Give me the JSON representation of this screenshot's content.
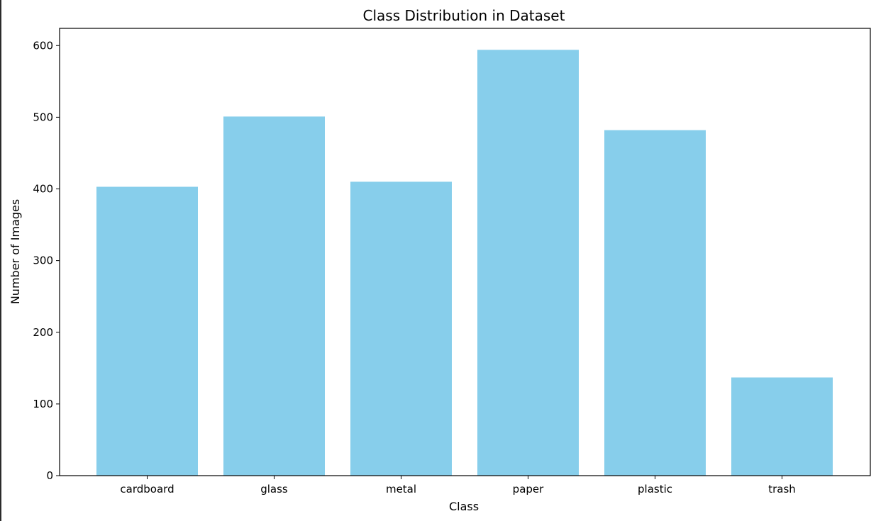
{
  "chart_data": {
    "type": "bar",
    "title": "Class Distribution in Dataset",
    "xlabel": "Class",
    "ylabel": "Number of Images",
    "categories": [
      "cardboard",
      "glass",
      "metal",
      "paper",
      "plastic",
      "trash"
    ],
    "values": [
      403,
      501,
      410,
      594,
      482,
      137
    ],
    "ylim": [
      0,
      624
    ],
    "yticks": [
      0,
      100,
      200,
      300,
      400,
      500,
      600
    ],
    "bar_color": "#87ceeb",
    "grid": false,
    "legend": "none"
  }
}
